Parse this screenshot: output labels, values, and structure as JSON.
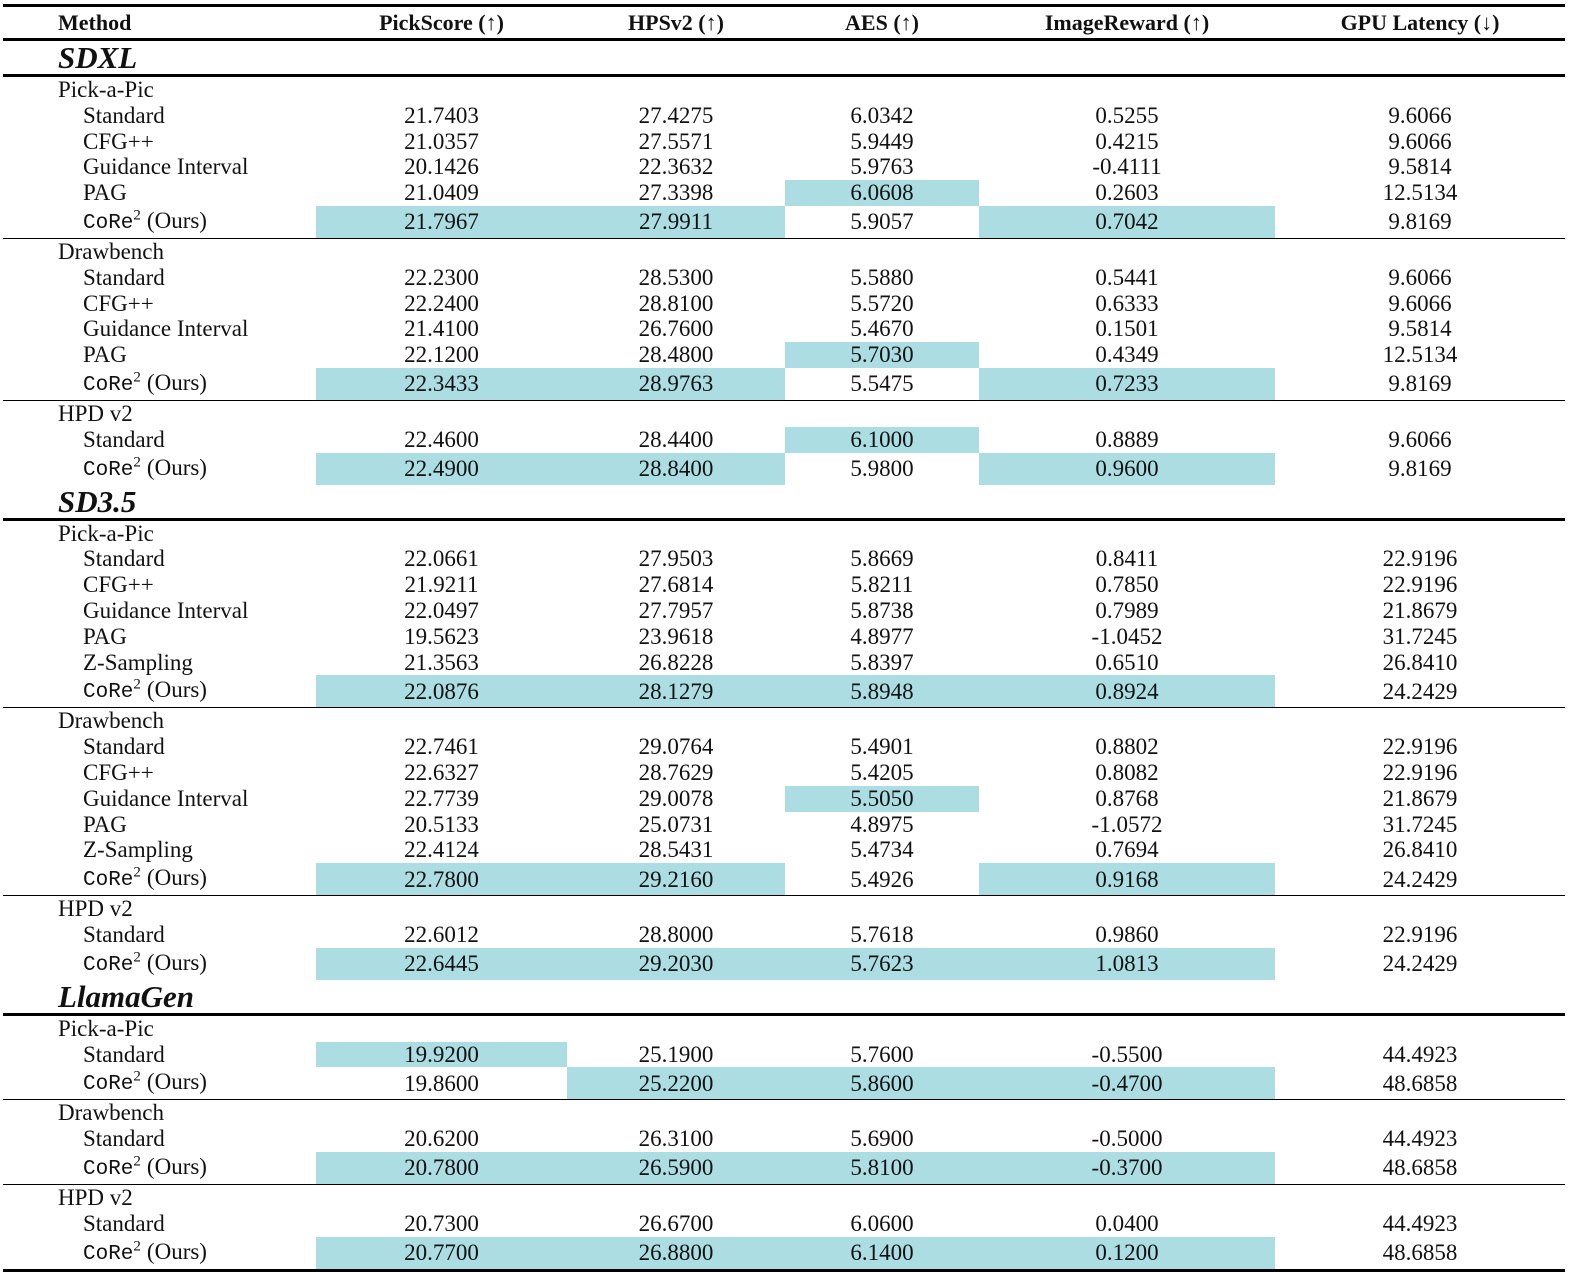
{
  "table": {
    "columns": [
      "Method",
      "PickScore (↑)",
      "HPSv2 (↑)",
      "AES (↑)",
      "ImageReward (↑)",
      "GPU Latency (↓)"
    ],
    "highlight_color": "#abdde3",
    "sections": [
      {
        "name": "SDXL",
        "groups": [
          {
            "name": "Pick-a-Pic",
            "rows": [
              {
                "method": "Standard",
                "values": [
                  "21.7403",
                  "27.4275",
                  "6.0342",
                  "0.5255",
                  "9.6066"
                ],
                "highlight": []
              },
              {
                "method": "CFG++",
                "values": [
                  "21.0357",
                  "27.5571",
                  "5.9449",
                  "0.4215",
                  "9.6066"
                ],
                "highlight": []
              },
              {
                "method": "Guidance Interval",
                "values": [
                  "20.1426",
                  "22.3632",
                  "5.9763",
                  "-0.4111",
                  "9.5814"
                ],
                "highlight": []
              },
              {
                "method": "PAG",
                "values": [
                  "21.0409",
                  "27.3398",
                  "6.0608",
                  "0.2603",
                  "12.5134"
                ],
                "highlight": [
                  2
                ]
              },
              {
                "method": {
                  "mono": "CoRe",
                  "sup": "2",
                  "text": "(Ours)"
                },
                "values": [
                  "21.7967",
                  "27.9911",
                  "5.9057",
                  "0.7042",
                  "9.8169"
                ],
                "highlight": [
                  0,
                  1,
                  3
                ]
              }
            ]
          },
          {
            "name": "Drawbench",
            "rows": [
              {
                "method": "Standard",
                "values": [
                  "22.2300",
                  "28.5300",
                  "5.5880",
                  "0.5441",
                  "9.6066"
                ],
                "highlight": []
              },
              {
                "method": "CFG++",
                "values": [
                  "22.2400",
                  "28.8100",
                  "5.5720",
                  "0.6333",
                  "9.6066"
                ],
                "highlight": []
              },
              {
                "method": "Guidance Interval",
                "values": [
                  "21.4100",
                  "26.7600",
                  "5.4670",
                  "0.1501",
                  "9.5814"
                ],
                "highlight": []
              },
              {
                "method": "PAG",
                "values": [
                  "22.1200",
                  "28.4800",
                  "5.7030",
                  "0.4349",
                  "12.5134"
                ],
                "highlight": [
                  2
                ]
              },
              {
                "method": {
                  "mono": "CoRe",
                  "sup": "2",
                  "text": "(Ours)"
                },
                "values": [
                  "22.3433",
                  "28.9763",
                  "5.5475",
                  "0.7233",
                  "9.8169"
                ],
                "highlight": [
                  0,
                  1,
                  3
                ]
              }
            ]
          },
          {
            "name": "HPD v2",
            "rows": [
              {
                "method": "Standard",
                "values": [
                  "22.4600",
                  "28.4400",
                  "6.1000",
                  "0.8889",
                  "9.6066"
                ],
                "highlight": [
                  2
                ]
              },
              {
                "method": {
                  "mono": "CoRe",
                  "sup": "2",
                  "text": "(Ours)"
                },
                "values": [
                  "22.4900",
                  "28.8400",
                  "5.9800",
                  "0.9600",
                  "9.8169"
                ],
                "highlight": [
                  0,
                  1,
                  3
                ]
              }
            ]
          }
        ]
      },
      {
        "name": "SD3.5",
        "groups": [
          {
            "name": "Pick-a-Pic",
            "rows": [
              {
                "method": "Standard",
                "values": [
                  "22.0661",
                  "27.9503",
                  "5.8669",
                  "0.8411",
                  "22.9196"
                ],
                "highlight": []
              },
              {
                "method": "CFG++",
                "values": [
                  "21.9211",
                  "27.6814",
                  "5.8211",
                  "0.7850",
                  "22.9196"
                ],
                "highlight": []
              },
              {
                "method": "Guidance Interval",
                "values": [
                  "22.0497",
                  "27.7957",
                  "5.8738",
                  "0.7989",
                  "21.8679"
                ],
                "highlight": []
              },
              {
                "method": "PAG",
                "values": [
                  "19.5623",
                  "23.9618",
                  "4.8977",
                  "-1.0452",
                  "31.7245"
                ],
                "highlight": []
              },
              {
                "method": "Z-Sampling",
                "values": [
                  "21.3563",
                  "26.8228",
                  "5.8397",
                  "0.6510",
                  "26.8410"
                ],
                "highlight": []
              },
              {
                "method": {
                  "mono": "CoRe",
                  "sup": "2",
                  "text": "(Ours)"
                },
                "values": [
                  "22.0876",
                  "28.1279",
                  "5.8948",
                  "0.8924",
                  "24.2429"
                ],
                "highlight": [
                  0,
                  1,
                  2,
                  3
                ]
              }
            ]
          },
          {
            "name": "Drawbench",
            "rows": [
              {
                "method": "Standard",
                "values": [
                  "22.7461",
                  "29.0764",
                  "5.4901",
                  "0.8802",
                  "22.9196"
                ],
                "highlight": []
              },
              {
                "method": "CFG++",
                "values": [
                  "22.6327",
                  "28.7629",
                  "5.4205",
                  "0.8082",
                  "22.9196"
                ],
                "highlight": []
              },
              {
                "method": "Guidance Interval",
                "values": [
                  "22.7739",
                  "29.0078",
                  "5.5050",
                  "0.8768",
                  "21.8679"
                ],
                "highlight": [
                  2
                ]
              },
              {
                "method": "PAG",
                "values": [
                  "20.5133",
                  "25.0731",
                  "4.8975",
                  "-1.0572",
                  "31.7245"
                ],
                "highlight": []
              },
              {
                "method": "Z-Sampling",
                "values": [
                  "22.4124",
                  "28.5431",
                  "5.4734",
                  "0.7694",
                  "26.8410"
                ],
                "highlight": []
              },
              {
                "method": {
                  "mono": "CoRe",
                  "sup": "2",
                  "text": "(Ours)"
                },
                "values": [
                  "22.7800",
                  "29.2160",
                  "5.4926",
                  "0.9168",
                  "24.2429"
                ],
                "highlight": [
                  0,
                  1,
                  3
                ]
              }
            ]
          },
          {
            "name": "HPD v2",
            "rows": [
              {
                "method": "Standard",
                "values": [
                  "22.6012",
                  "28.8000",
                  "5.7618",
                  "0.9860",
                  "22.9196"
                ],
                "highlight": []
              },
              {
                "method": {
                  "mono": "CoRe",
                  "sup": "2",
                  "text": "(Ours)"
                },
                "values": [
                  "22.6445",
                  "29.2030",
                  "5.7623",
                  "1.0813",
                  "24.2429"
                ],
                "highlight": [
                  0,
                  1,
                  2,
                  3
                ]
              }
            ]
          }
        ]
      },
      {
        "name": "LlamaGen",
        "groups": [
          {
            "name": "Pick-a-Pic",
            "rows": [
              {
                "method": "Standard",
                "values": [
                  "19.9200",
                  "25.1900",
                  "5.7600",
                  "-0.5500",
                  "44.4923"
                ],
                "highlight": [
                  0
                ]
              },
              {
                "method": {
                  "mono": "CoRe",
                  "sup": "2",
                  "text": "(Ours)"
                },
                "values": [
                  "19.8600",
                  "25.2200",
                  "5.8600",
                  "-0.4700",
                  "48.6858"
                ],
                "highlight": [
                  1,
                  2,
                  3
                ]
              }
            ]
          },
          {
            "name": "Drawbench",
            "rows": [
              {
                "method": "Standard",
                "values": [
                  "20.6200",
                  "26.3100",
                  "5.6900",
                  "-0.5000",
                  "44.4923"
                ],
                "highlight": []
              },
              {
                "method": {
                  "mono": "CoRe",
                  "sup": "2",
                  "text": "(Ours)"
                },
                "values": [
                  "20.7800",
                  "26.5900",
                  "5.8100",
                  "-0.3700",
                  "48.6858"
                ],
                "highlight": [
                  0,
                  1,
                  2,
                  3
                ]
              }
            ]
          },
          {
            "name": "HPD v2",
            "rows": [
              {
                "method": "Standard",
                "values": [
                  "20.7300",
                  "26.6700",
                  "6.0600",
                  "0.0400",
                  "44.4923"
                ],
                "highlight": []
              },
              {
                "method": {
                  "mono": "CoRe",
                  "sup": "2",
                  "text": "(Ours)"
                },
                "values": [
                  "20.7700",
                  "26.8800",
                  "6.1400",
                  "0.1200",
                  "48.6858"
                ],
                "highlight": [
                  0,
                  1,
                  2,
                  3
                ]
              }
            ]
          }
        ]
      }
    ]
  }
}
